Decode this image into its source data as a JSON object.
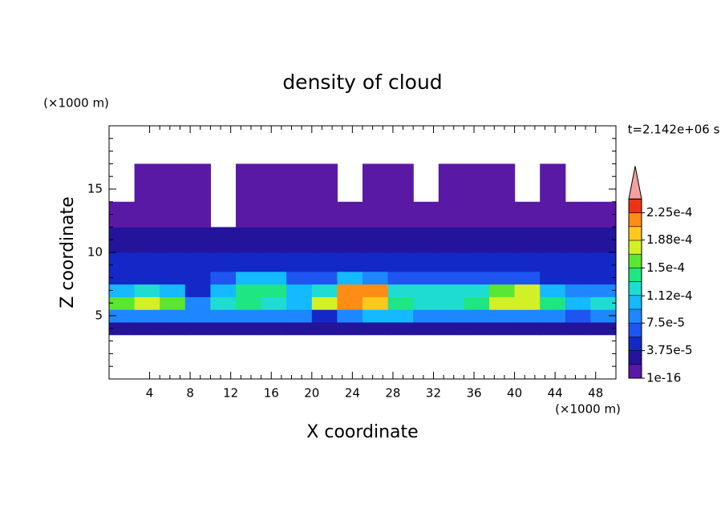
{
  "chart_data": {
    "type": "contour",
    "title": "density of cloud",
    "x_label": "X coordinate",
    "y_label": "Z coordinate",
    "x_unit": "(×1000 m)",
    "y_unit": "(×1000 m)",
    "annotation": "t=2.142e+06 s",
    "xlim": [
      0,
      50
    ],
    "ylim": [
      0,
      20
    ],
    "xticks": [
      4,
      8,
      12,
      16,
      20,
      24,
      28,
      32,
      36,
      40,
      44,
      48
    ],
    "yticks": [
      5,
      10,
      15
    ],
    "x": [
      0,
      2.5,
      5,
      7.5,
      10,
      12.5,
      15,
      17.5,
      20,
      22.5,
      25,
      27.5,
      30,
      32.5,
      35,
      37.5,
      40,
      42.5,
      45,
      47.5,
      50
    ],
    "z": [
      3.5,
      4.5,
      5.5,
      6.5,
      7.5,
      8.5,
      10,
      12,
      14,
      17
    ],
    "values": [
      [
        3e-05,
        3e-05,
        3e-05,
        3e-05,
        3e-05,
        3e-05,
        3e-05,
        3e-05,
        3e-05,
        3e-05,
        3e-05,
        3e-05,
        3e-05,
        3e-05,
        3e-05,
        3e-05,
        3e-05,
        3e-05,
        3e-05,
        3e-05
      ],
      [
        9e-05,
        9e-05,
        9e-05,
        8e-05,
        8e-05,
        9e-05,
        9e-05,
        8e-05,
        5e-05,
        9e-05,
        0.0001,
        0.0001,
        9e-05,
        9e-05,
        9e-05,
        9e-05,
        9e-05,
        9e-05,
        7e-05,
        8e-05
      ],
      [
        0.00016,
        0.00017,
        0.00015,
        9e-05,
        0.00012,
        0.00014,
        0.00013,
        0.0001,
        0.00017,
        0.00021,
        0.0002,
        0.00014,
        0.00013,
        0.00013,
        0.00014,
        0.00017,
        0.00018,
        0.00014,
        0.00011,
        0.00013
      ],
      [
        0.00011,
        0.00012,
        0.0001,
        5e-05,
        0.00011,
        0.00014,
        0.00014,
        0.0001,
        0.00013,
        0.00022,
        0.00021,
        0.00012,
        0.00012,
        0.00012,
        0.00013,
        0.00016,
        0.00017,
        0.00011,
        8e-05,
        9e-05
      ],
      [
        5e-05,
        5e-05,
        4e-05,
        4e-05,
        7e-05,
        0.00011,
        0.0001,
        6e-05,
        6e-05,
        0.0001,
        9e-05,
        6e-05,
        6e-05,
        6e-05,
        6e-05,
        7e-05,
        7e-05,
        5e-05,
        4e-05,
        5e-05
      ],
      [
        4e-05,
        4e-05,
        4e-05,
        4e-05,
        4e-05,
        5e-05,
        5e-05,
        4e-05,
        4e-05,
        5e-05,
        5e-05,
        4e-05,
        4e-05,
        4e-05,
        4e-05,
        4e-05,
        4e-05,
        4e-05,
        4e-05,
        4e-05
      ],
      [
        2.5e-05,
        2.5e-05,
        2.5e-05,
        2.5e-05,
        2.5e-05,
        2.5e-05,
        2.5e-05,
        2.5e-05,
        2.5e-05,
        2.5e-05,
        2.5e-05,
        2e-05,
        2e-05,
        2e-05,
        2e-05,
        2e-05,
        2e-05,
        2e-05,
        2e-05,
        2e-05
      ],
      [
        1e-05,
        1e-05,
        1e-05,
        1e-05,
        null,
        1e-05,
        1e-05,
        1e-05,
        1e-05,
        1e-05,
        1e-05,
        1e-05,
        1e-05,
        1e-05,
        1e-05,
        1e-05,
        1e-05,
        1e-05,
        1e-05,
        1e-05
      ],
      [
        null,
        5e-06,
        5e-06,
        5e-06,
        null,
        5e-06,
        5e-06,
        5e-06,
        5e-06,
        null,
        5e-06,
        5e-06,
        null,
        5e-06,
        5e-06,
        5e-06,
        null,
        5e-06,
        null,
        null
      ]
    ],
    "levels": [
      1e-16,
      1.875e-05,
      3.75e-05,
      5.625e-05,
      7.5e-05,
      9.375e-05,
      0.0001125,
      0.00013125,
      0.00015,
      0.00016875,
      0.0001875,
      0.00020625,
      0.000225,
      0.00024375
    ],
    "colors": [
      "#5a19a5",
      "#23149b",
      "#1428c8",
      "#1e55f0",
      "#1e87ff",
      "#14b9ff",
      "#1edcd2",
      "#1ee682",
      "#5ae632",
      "#d2f028",
      "#ffc81e",
      "#ff8c14",
      "#f03214"
    ],
    "over_color": "#f5a0a0",
    "colorbar_ticks": [
      {
        "value": 1e-16,
        "label": "1e-16"
      },
      {
        "value": 3.75e-05,
        "label": "3.75e-5"
      },
      {
        "value": 7.5e-05,
        "label": "7.5e-5"
      },
      {
        "value": 0.000112,
        "label": "1.12e-4"
      },
      {
        "value": 0.00015,
        "label": "1.5e-4"
      },
      {
        "value": 0.000188,
        "label": "1.88e-4"
      },
      {
        "value": 0.000225,
        "label": "2.25e-4"
      }
    ]
  }
}
